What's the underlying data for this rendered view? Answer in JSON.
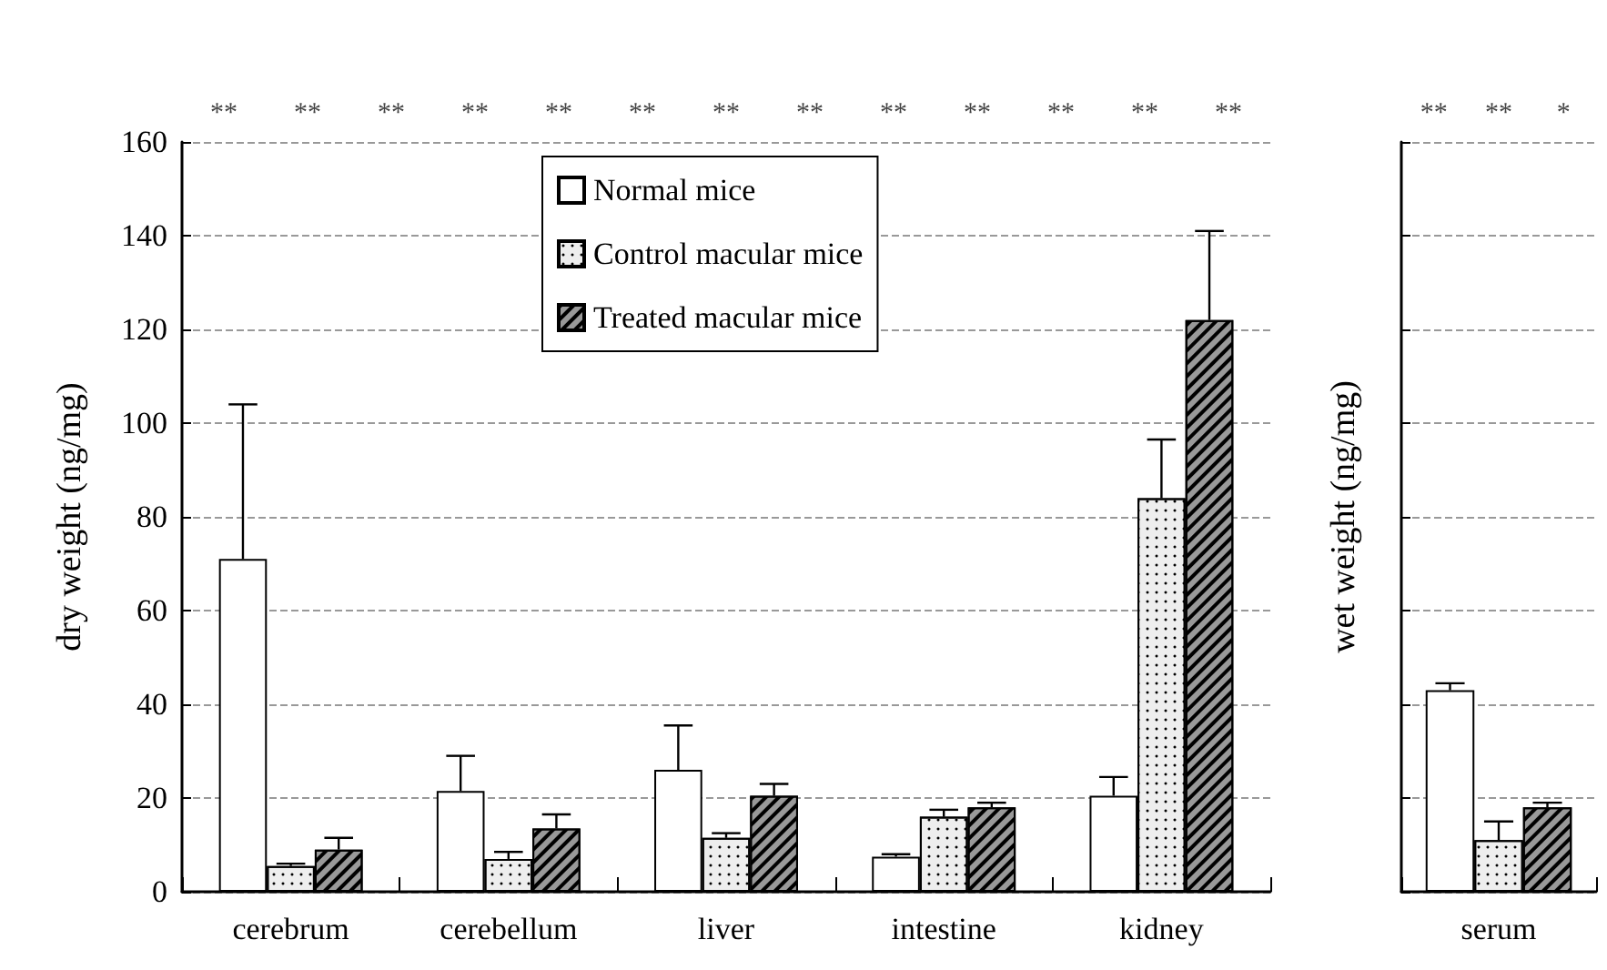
{
  "chart_data": [
    {
      "type": "bar",
      "ylabel": "dry weight (ng/mg)",
      "categories": [
        "cerebrum",
        "cerebellum",
        "liver",
        "intestine",
        "kidney"
      ],
      "ylim": [
        0,
        160
      ],
      "yticks": [
        0,
        20,
        40,
        60,
        80,
        100,
        120,
        140,
        160
      ],
      "grid": "y",
      "legend": "top",
      "series": [
        {
          "name": "Normal mice",
          "color": "#ffffff",
          "values": [
            71,
            21.5,
            26,
            7.5,
            20.5
          ],
          "errors": [
            [
              71,
              104
            ],
            [
              21.5,
              29
            ],
            [
              26,
              35.5
            ],
            [
              7.5,
              8
            ],
            [
              20.5,
              24.5
            ]
          ]
        },
        {
          "name": "Control macular mice",
          "color": "#eeeeee",
          "values": [
            5.5,
            7,
            11.5,
            16,
            84
          ],
          "errors": [
            [
              5.5,
              6
            ],
            [
              7,
              8.5
            ],
            [
              11.5,
              12.5
            ],
            [
              16,
              17.5
            ],
            [
              84,
              96.5
            ]
          ]
        },
        {
          "name": "Treated macular mice",
          "color": "#999999",
          "values": [
            9,
            13.5,
            20.5,
            18,
            122
          ],
          "errors": [
            [
              9,
              11.5
            ],
            [
              13.5,
              16.5
            ],
            [
              20.5,
              23
            ],
            [
              18,
              19
            ],
            [
              122,
              141
            ]
          ]
        }
      ],
      "annotations": [
        "**",
        "**",
        "**",
        "**",
        "**",
        "**",
        "**",
        "**",
        "**",
        "**",
        "**",
        "**",
        "**"
      ]
    },
    {
      "type": "bar",
      "ylabel": "wet weight (ng/mg)",
      "categories": [
        "serum"
      ],
      "ylim": [
        0,
        160
      ],
      "yticks": [
        0,
        20,
        40,
        60,
        80,
        100,
        120,
        140,
        160
      ],
      "grid": "y",
      "tick_labels": "x",
      "series": [
        {
          "color": "#ffffff",
          "values": [
            43
          ],
          "errors": [
            [
              43,
              44.5
            ]
          ]
        },
        {
          "color": "#eeeeee",
          "values": [
            11
          ],
          "errors": [
            [
              11,
              15
            ]
          ]
        },
        {
          "color": "#999999",
          "values": [
            18
          ],
          "errors": [
            [
              18,
              19
            ]
          ]
        }
      ],
      "annotations": [
        "**",
        "**",
        "*"
      ]
    }
  ]
}
